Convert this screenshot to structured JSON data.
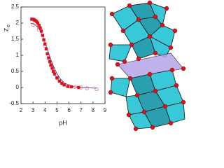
{
  "chart_data": {
    "type": "scatter",
    "xlabel": "pH",
    "ylabel": "z",
    "ylabel_subscript": "e",
    "xlim": [
      2,
      9
    ],
    "xticks": [
      2,
      3,
      4,
      5,
      6,
      7,
      8,
      9
    ],
    "ylim": [
      -0.5,
      2.5
    ],
    "yticks": [
      -0.5,
      0,
      0.5,
      1,
      1.5,
      2,
      2.5
    ],
    "series": [
      {
        "marker": "line",
        "color": "#4b3a8c",
        "x": [
          2.8,
          3.0,
          3.2,
          3.4,
          3.6,
          3.8,
          4.0,
          4.2,
          4.4,
          4.6,
          4.8,
          5.0,
          5.3,
          5.6,
          6.0,
          6.5,
          7.0,
          7.5,
          8.3
        ],
        "values": [
          2.0,
          1.98,
          1.94,
          1.87,
          1.76,
          1.6,
          1.4,
          1.18,
          0.96,
          0.76,
          0.58,
          0.43,
          0.26,
          0.15,
          0.07,
          0.02,
          0.0,
          -0.01,
          -0.02
        ]
      },
      {
        "marker": "circle",
        "color": "#e07a8a",
        "x": [
          3.0,
          3.5,
          4.0,
          4.5,
          5.0,
          5.5,
          6.0,
          6.5,
          7.0,
          7.5,
          8.3
        ],
        "values": [
          1.95,
          1.8,
          1.3,
          0.68,
          0.3,
          0.12,
          0.05,
          0.02,
          0.0,
          -0.02,
          -0.05
        ]
      },
      {
        "marker": "square",
        "color": "#e0101a",
        "x": [
          2.9,
          3.0,
          3.1,
          3.2,
          3.3,
          3.4,
          3.5,
          3.6,
          3.7,
          3.8,
          3.9,
          4.0,
          4.1,
          4.2,
          4.3,
          4.4,
          4.5,
          4.6,
          4.7,
          4.8,
          5.0,
          5.2,
          5.4,
          5.6,
          5.9,
          6.2,
          6.8
        ],
        "values": [
          2.12,
          2.12,
          2.1,
          2.08,
          2.05,
          2.0,
          1.93,
          1.85,
          1.75,
          1.62,
          1.48,
          1.35,
          1.2,
          1.05,
          0.92,
          0.8,
          0.7,
          0.6,
          0.5,
          0.42,
          0.3,
          0.2,
          0.13,
          0.08,
          0.03,
          0.02,
          0.0
        ]
      }
    ]
  }
}
